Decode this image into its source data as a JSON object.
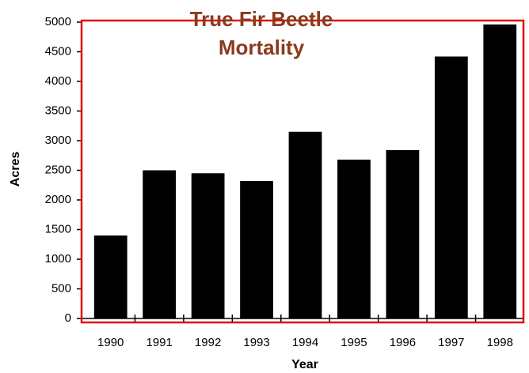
{
  "chart_data": {
    "type": "bar",
    "title": [
      "True Fir Beetle",
      "Mortality"
    ],
    "x_label": "Year",
    "y_label": "Acres",
    "categories": [
      "1990",
      "1991",
      "1992",
      "1993",
      "1994",
      "1995",
      "1996",
      "1997",
      "1998"
    ],
    "values": [
      1400,
      2500,
      2450,
      2320,
      3150,
      2680,
      2840,
      4420,
      4960
    ],
    "color": "#000000",
    "frame_color": "#e01010",
    "ylim": [
      0,
      5000
    ],
    "yticks": [
      0,
      500,
      1000,
      1500,
      2000,
      2500,
      3000,
      3500,
      4000,
      4500,
      5000
    ],
    "grid": false
  }
}
